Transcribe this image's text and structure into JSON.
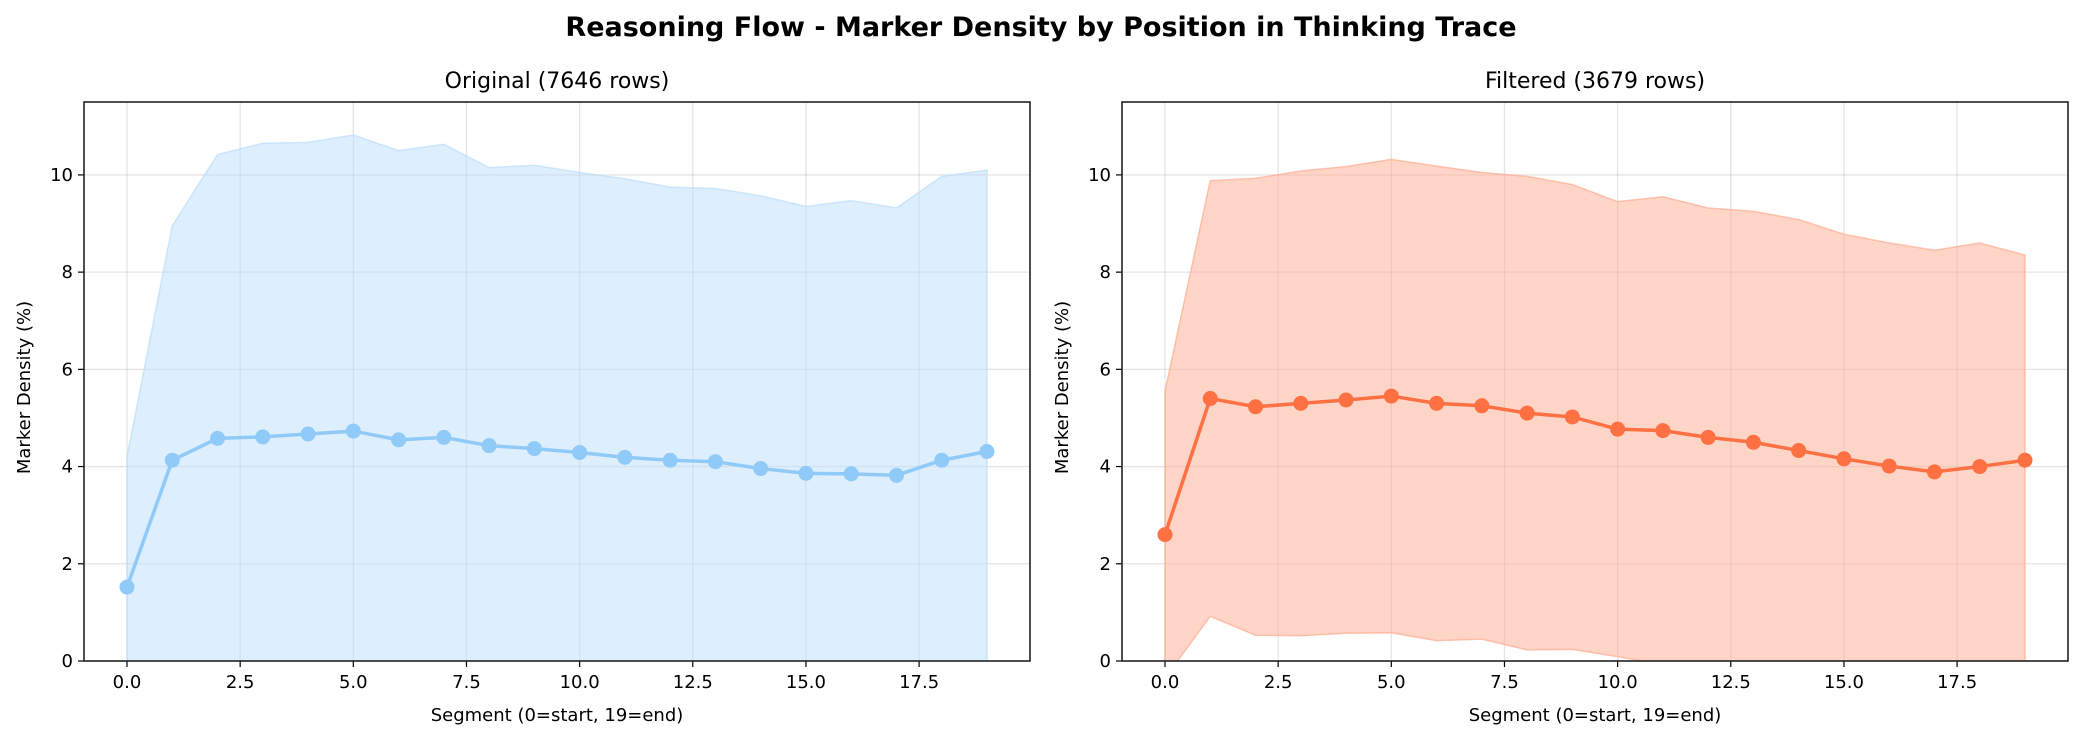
{
  "figure_title": "Reasoning Flow - Marker Density by Position in Thinking Trace",
  "chart_data": [
    {
      "type": "line",
      "title": "Original (7646 rows)",
      "xlabel": "Segment (0=start, 19=end)",
      "ylabel": "Marker Density (%)",
      "xlim": [
        -0.95,
        19.95
      ],
      "ylim": [
        0,
        11.5
      ],
      "xticks": [
        "0.0",
        "2.5",
        "5.0",
        "7.5",
        "10.0",
        "12.5",
        "15.0",
        "17.5"
      ],
      "yticks": [
        "0",
        "2",
        "4",
        "6",
        "8",
        "10"
      ],
      "grid": true,
      "line_color": "#90CAF9",
      "band_color": "#BBDEFB",
      "x": [
        0,
        1,
        2,
        3,
        4,
        5,
        6,
        7,
        8,
        9,
        10,
        11,
        12,
        13,
        14,
        15,
        16,
        17,
        18,
        19
      ],
      "mean": [
        1.52,
        4.13,
        4.58,
        4.61,
        4.67,
        4.73,
        4.55,
        4.6,
        4.43,
        4.37,
        4.29,
        4.19,
        4.13,
        4.1,
        3.96,
        3.86,
        3.85,
        3.82,
        4.13,
        4.31
      ],
      "upper": [
        4.2,
        8.95,
        10.42,
        10.65,
        10.67,
        10.82,
        10.5,
        10.63,
        10.15,
        10.2,
        10.05,
        9.92,
        9.75,
        9.72,
        9.57,
        9.35,
        9.47,
        9.32,
        9.97,
        10.1
      ]
    },
    {
      "type": "line",
      "title": "Filtered (3679 rows)",
      "xlabel": "Segment (0=start, 19=end)",
      "ylabel": "Marker Density (%)",
      "xlim": [
        -0.95,
        19.95
      ],
      "ylim": [
        0,
        11.5
      ],
      "xticks": [
        "0.0",
        "2.5",
        "5.0",
        "7.5",
        "10.0",
        "12.5",
        "15.0",
        "17.5"
      ],
      "yticks": [
        "0",
        "2",
        "4",
        "6",
        "8",
        "10"
      ],
      "grid": true,
      "line_color": "#FF7043",
      "band_color": "#FFAB91",
      "x": [
        0,
        1,
        2,
        3,
        4,
        5,
        6,
        7,
        8,
        9,
        10,
        11,
        12,
        13,
        14,
        15,
        16,
        17,
        18,
        19
      ],
      "mean": [
        2.6,
        5.4,
        5.23,
        5.3,
        5.37,
        5.45,
        5.3,
        5.25,
        5.1,
        5.02,
        4.77,
        4.74,
        4.6,
        4.5,
        4.33,
        4.16,
        4.01,
        3.89,
        4.0,
        4.13
      ],
      "upper": [
        5.55,
        9.88,
        9.93,
        10.08,
        10.17,
        10.32,
        10.18,
        10.05,
        9.97,
        9.8,
        9.45,
        9.55,
        9.32,
        9.25,
        9.08,
        8.78,
        8.6,
        8.45,
        8.6,
        8.35
      ]
    }
  ]
}
